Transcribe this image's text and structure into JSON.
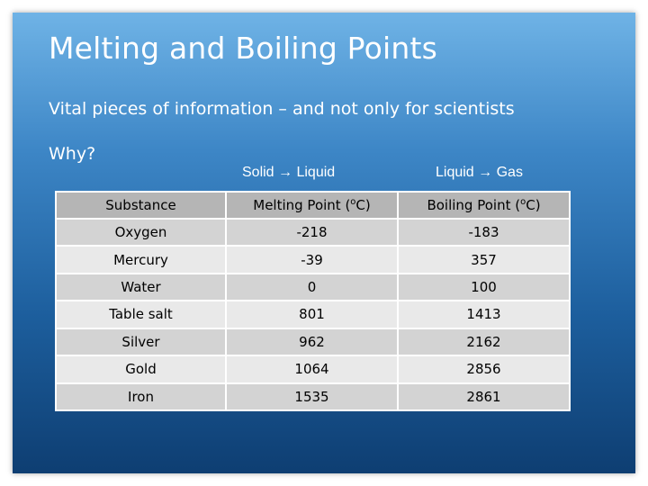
{
  "slide": {
    "title": "Melting and Boiling Points",
    "subtitle": "Vital pieces of information – and not only for scientists",
    "why": "Why?"
  },
  "captions": {
    "melting": "Solid → Liquid",
    "boiling": "Liquid → Gas"
  },
  "table": {
    "headers": {
      "substance": "Substance",
      "melting_prefix": "Melting Point (",
      "boiling_prefix": "Boiling Point (",
      "degree": "o",
      "unit_suffix": "C)"
    },
    "rows": [
      {
        "substance": "Oxygen",
        "melting": "-218",
        "boiling": "-183"
      },
      {
        "substance": "Mercury",
        "melting": "-39",
        "boiling": "357"
      },
      {
        "substance": "Water",
        "melting": "0",
        "boiling": "100"
      },
      {
        "substance": "Table salt",
        "melting": "801",
        "boiling": "1413"
      },
      {
        "substance": "Silver",
        "melting": "962",
        "boiling": "2162"
      },
      {
        "substance": "Gold",
        "melting": "1064",
        "boiling": "2856"
      },
      {
        "substance": "Iron",
        "melting": "1535",
        "boiling": "2861"
      }
    ]
  },
  "colors": {
    "background_top": "#6fb3e6",
    "background_bottom": "#0e3e72",
    "header_fill": "#b5b5b5",
    "row_fill_dark": "#d3d3d3",
    "row_fill_light": "#e9e9e9"
  }
}
